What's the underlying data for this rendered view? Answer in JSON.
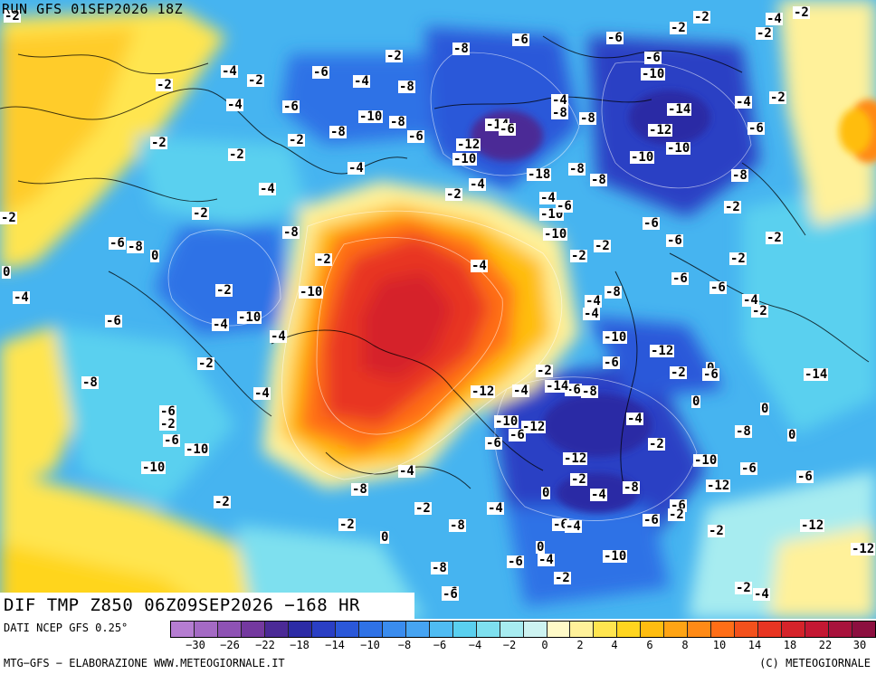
{
  "header": {
    "run": "RUN GFS 01SEP2026 18Z"
  },
  "field_title": "DIF TMP Z850 06Z09SEP2026 −168 HR",
  "source": "DATI NCEP GFS 0.25°",
  "credit_left": "MTG−GFS − ELABORAZIONE WWW.METEOGIORNALE.IT",
  "credit_right": "(C) METEOGIORNALE",
  "colorbar": {
    "colors": [
      "#b57dd1",
      "#a46ac4",
      "#8e52b4",
      "#74399f",
      "#4b2a96",
      "#2c2ba5",
      "#2a3fc4",
      "#2b58d9",
      "#2f72e6",
      "#3a8cee",
      "#46a4f2",
      "#4fbcf3",
      "#5ad0ef",
      "#7ee0ef",
      "#a7ecf0",
      "#cdf3f1",
      "#fffac8",
      "#fff19a",
      "#ffe54f",
      "#ffd51f",
      "#ffbd10",
      "#ffa414",
      "#ff8a16",
      "#ff6e17",
      "#f3511c",
      "#e83522",
      "#d5232a",
      "#c41833",
      "#a8123c",
      "#8c0f3f"
    ],
    "ticks": [
      "−30",
      "−26",
      "−22",
      "−18",
      "−14",
      "−10",
      "−8",
      "−6",
      "−4",
      "−2",
      "0",
      "2",
      "4",
      "6",
      "8",
      "10",
      "14",
      "18",
      "22",
      "30"
    ]
  },
  "contour_labels": [
    {
      "t": "-2"
    },
    {
      "t": "-4"
    },
    {
      "t": "-2"
    },
    {
      "t": "-6"
    },
    {
      "t": "-2"
    },
    {
      "t": "-2"
    },
    {
      "t": "-6"
    },
    {
      "t": "-8"
    },
    {
      "t": "-2"
    },
    {
      "t": "-4"
    },
    {
      "t": "-2"
    },
    {
      "t": "-6"
    },
    {
      "t": "-2"
    },
    {
      "t": "-4"
    },
    {
      "t": "-8"
    },
    {
      "t": "-6"
    },
    {
      "t": "-10"
    },
    {
      "t": "-2"
    },
    {
      "t": "-4"
    },
    {
      "t": "-6"
    },
    {
      "t": "-10"
    },
    {
      "t": "-8"
    },
    {
      "t": "-4"
    },
    {
      "t": "-8"
    },
    {
      "t": "-14"
    },
    {
      "t": "-8"
    },
    {
      "t": "-4"
    },
    {
      "t": "-14"
    },
    {
      "t": "-6"
    },
    {
      "t": "-2"
    },
    {
      "t": "-8"
    },
    {
      "t": "-6"
    },
    {
      "t": "-12"
    },
    {
      "t": "-12"
    },
    {
      "t": "-10"
    },
    {
      "t": "-6"
    },
    {
      "t": "-2"
    },
    {
      "t": "-2"
    },
    {
      "t": "-2"
    },
    {
      "t": "-4"
    },
    {
      "t": "-10"
    },
    {
      "t": "-18"
    },
    {
      "t": "-8"
    },
    {
      "t": "-8"
    },
    {
      "t": "-10"
    },
    {
      "t": "-8"
    },
    {
      "t": "-4"
    },
    {
      "t": "-2"
    },
    {
      "t": "-4"
    },
    {
      "t": "-2"
    },
    {
      "t": "-2"
    },
    {
      "t": "-4"
    },
    {
      "t": "-10"
    },
    {
      "t": "-6"
    },
    {
      "t": "-2"
    },
    {
      "t": "-8"
    },
    {
      "t": "-6"
    },
    {
      "t": "-6"
    },
    {
      "t": "-4"
    },
    {
      "t": "-6"
    },
    {
      "t": "-8"
    },
    {
      "t": "0"
    },
    {
      "t": "-2"
    },
    {
      "t": "0"
    },
    {
      "t": "-10"
    },
    {
      "t": "-2"
    },
    {
      "t": "-2"
    },
    {
      "t": "-2"
    },
    {
      "t": "-2"
    },
    {
      "t": "-10"
    },
    {
      "t": "-2"
    },
    {
      "t": "-6"
    },
    {
      "t": "-4"
    },
    {
      "t": "-6"
    },
    {
      "t": "-4"
    },
    {
      "t": "-4"
    },
    {
      "t": "-8"
    },
    {
      "t": "-6"
    },
    {
      "t": "-4"
    },
    {
      "t": "-10"
    },
    {
      "t": "-4"
    },
    {
      "t": "-2"
    },
    {
      "t": "-4"
    },
    {
      "t": "-12"
    },
    {
      "t": "-10"
    },
    {
      "t": "-6"
    },
    {
      "t": "-2"
    },
    {
      "t": "0"
    },
    {
      "t": "-2"
    },
    {
      "t": "-4"
    },
    {
      "t": "-6"
    },
    {
      "t": "-14"
    },
    {
      "t": "-8"
    },
    {
      "t": "-6"
    },
    {
      "t": "0"
    },
    {
      "t": "0"
    },
    {
      "t": "-4"
    },
    {
      "t": "-12"
    },
    {
      "t": "-2"
    },
    {
      "t": "-8"
    },
    {
      "t": "-10"
    },
    {
      "t": "-12"
    },
    {
      "t": "-4"
    },
    {
      "t": "-6"
    },
    {
      "t": "-2"
    },
    {
      "t": "-6"
    },
    {
      "t": "-2"
    },
    {
      "t": "-12"
    },
    {
      "t": "-6"
    },
    {
      "t": "-6"
    },
    {
      "t": "-2"
    },
    {
      "t": "-10"
    },
    {
      "t": "-14"
    },
    {
      "t": "-10"
    },
    {
      "t": "-6"
    },
    {
      "t": "0"
    },
    {
      "t": "-8"
    },
    {
      "t": "-10"
    },
    {
      "t": "-2"
    },
    {
      "t": "-4"
    },
    {
      "t": "-8"
    },
    {
      "t": "-6"
    },
    {
      "t": "0"
    },
    {
      "t": "-4"
    },
    {
      "t": "-8"
    },
    {
      "t": "-6"
    },
    {
      "t": "-12"
    },
    {
      "t": "-2"
    },
    {
      "t": "-6"
    },
    {
      "t": "-4"
    },
    {
      "t": "-8"
    },
    {
      "t": "-2"
    },
    {
      "t": "-2"
    },
    {
      "t": "-6"
    },
    {
      "t": "-2"
    },
    {
      "t": "0"
    },
    {
      "t": "0"
    },
    {
      "t": "-4"
    },
    {
      "t": "-12"
    },
    {
      "t": "-10"
    },
    {
      "t": "-6"
    },
    {
      "t": "-8"
    },
    {
      "t": "-2"
    },
    {
      "t": "-12"
    },
    {
      "t": "-6"
    },
    {
      "t": "-6"
    },
    {
      "t": "-2"
    },
    {
      "t": "-4"
    },
    {
      "t": "-4"
    }
  ]
}
